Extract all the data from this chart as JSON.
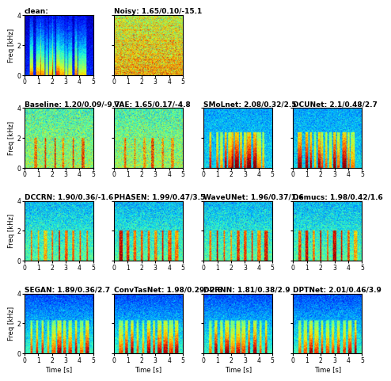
{
  "panels": [
    {
      "row": 0,
      "col": 0,
      "title": "clean:",
      "pattern": "clean"
    },
    {
      "row": 0,
      "col": 1,
      "title": "Noisy: 1.65/0.10/-15.1",
      "pattern": "noisy"
    },
    {
      "row": 1,
      "col": 0,
      "title": "Baseline: 1.20/0.09/-9.7",
      "pattern": "baseline"
    },
    {
      "row": 1,
      "col": 1,
      "title": "VAE: 1.65/0.17/-4.8",
      "pattern": "vae"
    },
    {
      "row": 1,
      "col": 2,
      "title": "SMoLnet: 2.08/0.32/2.5",
      "pattern": "smolnet"
    },
    {
      "row": 1,
      "col": 3,
      "title": "DCUNet: 2.1/0.48/2.7",
      "pattern": "dcunet"
    },
    {
      "row": 2,
      "col": 0,
      "title": "DCCRN: 1.90/0.36/-1.6",
      "pattern": "dccrn"
    },
    {
      "row": 2,
      "col": 1,
      "title": "PHASEN: 1.99/0.47/3.5",
      "pattern": "phasen"
    },
    {
      "row": 2,
      "col": 2,
      "title": "WaveUNet: 1.96/0.37/1.6",
      "pattern": "waveunet"
    },
    {
      "row": 2,
      "col": 3,
      "title": "Demucs: 1.98/0.42/1.6",
      "pattern": "demucs"
    },
    {
      "row": 3,
      "col": 0,
      "title": "SEGAN: 1.89/0.36/2.7",
      "pattern": "segan"
    },
    {
      "row": 3,
      "col": 1,
      "title": "ConvTasNet: 1.98/0.29/-2.6",
      "pattern": "convtasnet"
    },
    {
      "row": 3,
      "col": 2,
      "title": "DPRNN: 1.81/0.38/2.9",
      "pattern": "dprnn"
    },
    {
      "row": 3,
      "col": 3,
      "title": "DPTNet: 2.01/0.46/3.9",
      "pattern": "dptnet"
    }
  ],
  "nrows": 4,
  "ncols": 4,
  "freq_max": 4,
  "time_max": 5,
  "xlabel": "Time [s]",
  "ylabel": "Freq [kHz]",
  "title_fontsize": 6.5,
  "label_fontsize": 6,
  "tick_fontsize": 5.5
}
